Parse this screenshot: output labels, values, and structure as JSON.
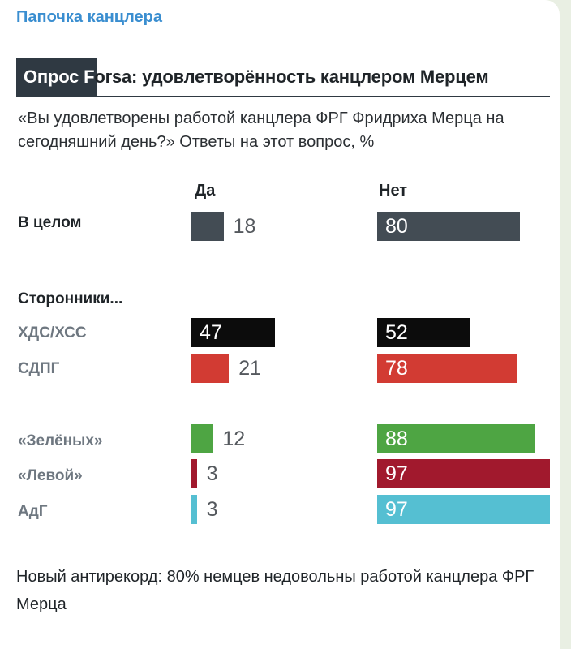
{
  "post": {
    "channel_name": "Папочка канцлера",
    "caption": "Новый антирекорд: 80% немцев недовольны работой канцлера ФРГ Мерца"
  },
  "chart_data": {
    "type": "bar",
    "title_prefix": "Опрос F",
    "title_rest": "orsa: удовлетворённость канцлером Мерцем",
    "subtitle": "«Вы удовлетворены работой канцлера ФРГ Фридриха Мерца на сегодняшний день?» Ответы на этот вопрос, %",
    "columns": [
      "Да",
      "Нет"
    ],
    "group_label": "Сторонники...",
    "xlim": [
      0,
      100
    ],
    "rows": [
      {
        "label": "В целом",
        "yes": 18,
        "no": 80,
        "color": "#434c54",
        "yes_inside": false
      },
      {
        "label": "ХДС/ХСС",
        "yes": 47,
        "no": 52,
        "color": "#0c0c0c",
        "yes_inside": true
      },
      {
        "label": "СДПГ",
        "yes": 21,
        "no": 78,
        "color": "#d23b33",
        "yes_inside": false
      },
      {
        "label": "«Зелёных»",
        "yes": 12,
        "no": 88,
        "color": "#4ea543",
        "yes_inside": false
      },
      {
        "label": "«Левой»",
        "yes": 3,
        "no": 97,
        "color": "#a1192d",
        "yes_inside": false
      },
      {
        "label": "АдГ",
        "yes": 3,
        "no": 97,
        "color": "#55bfd2",
        "yes_inside": false
      }
    ]
  }
}
